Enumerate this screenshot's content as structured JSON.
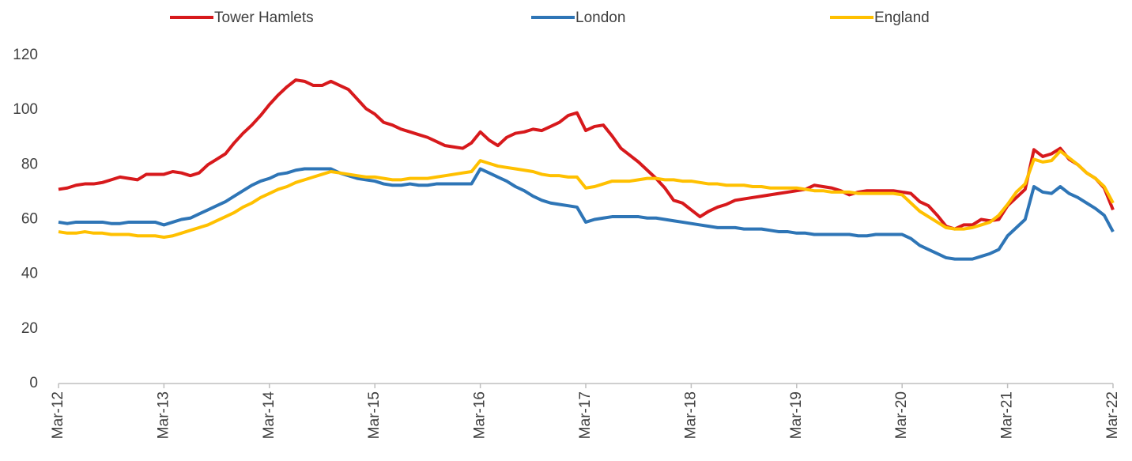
{
  "chart_data": {
    "type": "line",
    "categories": [
      "Mar-12",
      null,
      null,
      null,
      null,
      null,
      null,
      null,
      null,
      null,
      null,
      null,
      "Mar-13",
      null,
      null,
      null,
      null,
      null,
      null,
      null,
      null,
      null,
      null,
      null,
      "Mar-14",
      null,
      null,
      null,
      null,
      null,
      null,
      null,
      null,
      null,
      null,
      null,
      "Mar-15",
      null,
      null,
      null,
      null,
      null,
      null,
      null,
      null,
      null,
      null,
      null,
      "Mar-16",
      null,
      null,
      null,
      null,
      null,
      null,
      null,
      null,
      null,
      null,
      null,
      "Mar-17",
      null,
      null,
      null,
      null,
      null,
      null,
      null,
      null,
      null,
      null,
      null,
      "Mar-18",
      null,
      null,
      null,
      null,
      null,
      null,
      null,
      null,
      null,
      null,
      null,
      "Mar-19",
      null,
      null,
      null,
      null,
      null,
      null,
      null,
      null,
      null,
      null,
      null,
      "Mar-20",
      null,
      null,
      null,
      null,
      null,
      null,
      null,
      null,
      null,
      null,
      null,
      "Mar-21",
      null,
      null,
      null,
      null,
      null,
      null,
      null,
      null,
      null,
      null,
      null,
      "Mar-22"
    ],
    "series": [
      {
        "name": "Tower Hamlets",
        "color": "#d7191c",
        "values": [
          71,
          71.5,
          72.5,
          73,
          73,
          73.5,
          74.5,
          75.5,
          75,
          74.5,
          76.5,
          76.5,
          76.5,
          77.5,
          77,
          76,
          77,
          80,
          82,
          84,
          88,
          91.5,
          94.5,
          98,
          102,
          105.5,
          108.5,
          111,
          110.5,
          109,
          109,
          110.5,
          109,
          107.5,
          104,
          100.5,
          98.5,
          95.5,
          94.5,
          93,
          92,
          91,
          90,
          88.5,
          87,
          86.5,
          86,
          88,
          92,
          89,
          87,
          90,
          91.5,
          92,
          93,
          92.5,
          94,
          95.5,
          98,
          99,
          92.5,
          94,
          94.5,
          90.5,
          86,
          83.5,
          81,
          78,
          75,
          71.5,
          67,
          66,
          63.5,
          61,
          63,
          64.5,
          65.5,
          67,
          67.5,
          68,
          68.5,
          69,
          69.5,
          70,
          70.5,
          71,
          72.5,
          72,
          71.5,
          70.5,
          69,
          70,
          70.5,
          70.5,
          70.5,
          70.5,
          70,
          69.5,
          66.5,
          65,
          61.5,
          57.5,
          56.5,
          58,
          58,
          60,
          59.5,
          60,
          65,
          68,
          71,
          85.5,
          83,
          84,
          86,
          82,
          80,
          77,
          75,
          71.5,
          63.5
        ]
      },
      {
        "name": "London",
        "color": "#2e75b6",
        "values": [
          59,
          58.5,
          59,
          59,
          59,
          59,
          58.5,
          58.5,
          59,
          59,
          59,
          59,
          58,
          59,
          60,
          60.5,
          62,
          63.5,
          65,
          66.5,
          68.5,
          70.5,
          72.5,
          74,
          75,
          76.5,
          77,
          78,
          78.5,
          78.5,
          78.5,
          78.5,
          77,
          76,
          75,
          74.5,
          74,
          73,
          72.5,
          72.5,
          73,
          72.5,
          72.5,
          73,
          73,
          73,
          73,
          73,
          78.5,
          77,
          75.5,
          74,
          72,
          70.5,
          68.5,
          67,
          66,
          65.5,
          65,
          64.5,
          59,
          60,
          60.5,
          61,
          61,
          61,
          61,
          60.5,
          60.5,
          60,
          59.5,
          59,
          58.5,
          58,
          57.5,
          57,
          57,
          57,
          56.5,
          56.5,
          56.5,
          56,
          55.5,
          55.5,
          55,
          55,
          54.5,
          54.5,
          54.5,
          54.5,
          54.5,
          54,
          54,
          54.5,
          54.5,
          54.5,
          54.5,
          53,
          50.5,
          49,
          47.5,
          46,
          45.5,
          45.5,
          45.5,
          46.5,
          47.5,
          49,
          54,
          57,
          60,
          72,
          70,
          69.5,
          72,
          69.5,
          68,
          66,
          64,
          61.5,
          55.5
        ]
      },
      {
        "name": "England",
        "color": "#ffc000",
        "values": [
          55.5,
          55,
          55,
          55.5,
          55,
          55,
          54.5,
          54.5,
          54.5,
          54,
          54,
          54,
          53.5,
          54,
          55,
          56,
          57,
          58,
          59.5,
          61,
          62.5,
          64.5,
          66,
          68,
          69.5,
          71,
          72,
          73.5,
          74.5,
          75.5,
          76.5,
          77.5,
          77,
          76.5,
          76,
          75.5,
          75.5,
          75,
          74.5,
          74.5,
          75,
          75,
          75,
          75.5,
          76,
          76.5,
          77,
          77.5,
          81.5,
          80.5,
          79.5,
          79,
          78.5,
          78,
          77.5,
          76.5,
          76,
          76,
          75.5,
          75.5,
          71.5,
          72,
          73,
          74,
          74,
          74,
          74.5,
          75,
          75,
          74.5,
          74.5,
          74,
          74,
          73.5,
          73,
          73,
          72.5,
          72.5,
          72.5,
          72,
          72,
          71.5,
          71.5,
          71.5,
          71.5,
          71,
          70.5,
          70.5,
          70,
          70,
          70,
          69.5,
          69.5,
          69.5,
          69.5,
          69.5,
          69,
          66,
          63,
          61,
          59,
          57,
          56.5,
          56.5,
          57,
          58,
          59,
          61.5,
          65.5,
          70,
          73,
          82,
          81,
          81.5,
          85,
          82.5,
          80,
          77,
          75,
          72,
          66
        ]
      }
    ],
    "ylim": [
      0,
      120
    ],
    "yticks": [
      0,
      20,
      40,
      60,
      80,
      100,
      120
    ],
    "grid": false,
    "legend": "top"
  }
}
